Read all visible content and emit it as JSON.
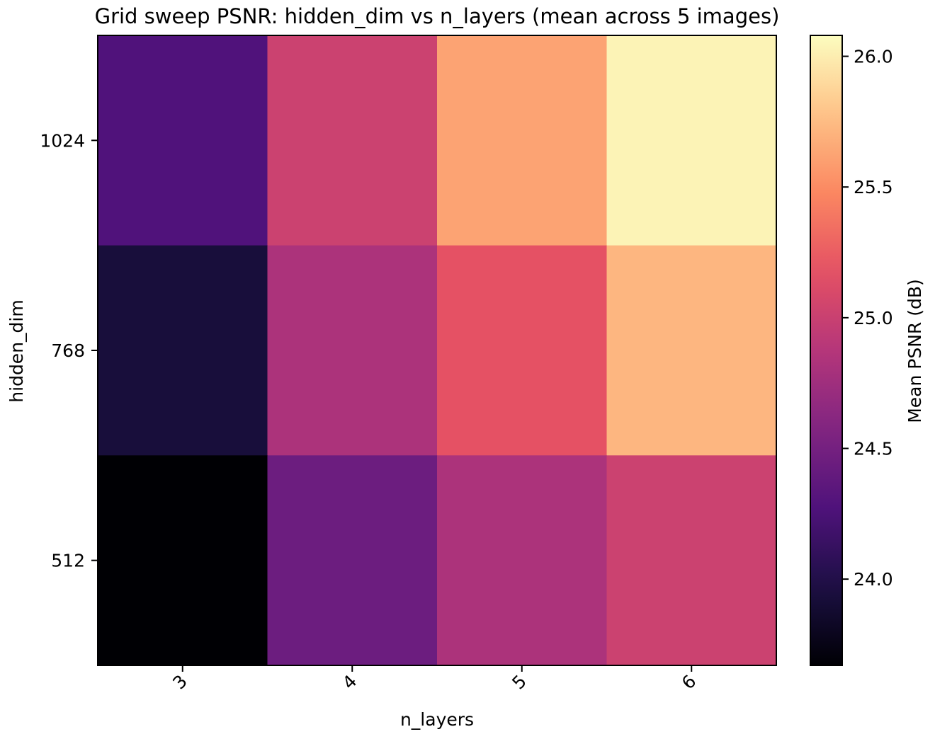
{
  "chart_data": {
    "type": "heatmap",
    "title": "Grid sweep PSNR: hidden_dim vs n_layers (mean across 5 images)",
    "xlabel": "n_layers",
    "ylabel": "hidden_dim",
    "x_categories": [
      "3",
      "4",
      "5",
      "6"
    ],
    "y_categories": [
      "1024",
      "768",
      "512"
    ],
    "values": [
      [
        24.28,
        25.01,
        25.62,
        26.03
      ],
      [
        23.93,
        24.82,
        25.18,
        25.72
      ],
      [
        23.67,
        24.45,
        24.82,
        25.01
      ]
    ],
    "colormap": "magma",
    "colorbar": {
      "label": "Mean PSNR (dB)",
      "range": [
        23.67,
        26.08
      ],
      "ticks": [
        24.0,
        24.5,
        25.0,
        25.5,
        26.0
      ],
      "tick_labels": [
        "24.0",
        "24.5",
        "25.0",
        "25.5",
        "26.0"
      ]
    }
  }
}
